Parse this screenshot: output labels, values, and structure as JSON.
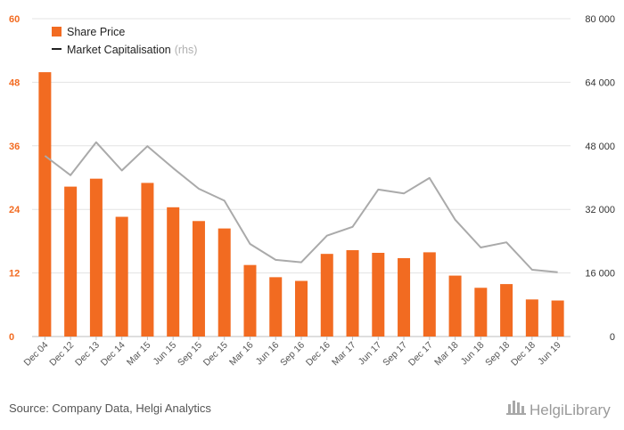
{
  "chart_data": {
    "type": "bar",
    "categories": [
      "Dec 04",
      "Dec 12",
      "Dec 13",
      "Dec 14",
      "Mar 15",
      "Jun 15",
      "Sep 15",
      "Dec 15",
      "Mar 16",
      "Jun 16",
      "Sep 16",
      "Dec 16",
      "Mar 17",
      "Jun 17",
      "Sep 17",
      "Dec 17",
      "Mar 18",
      "Jun 18",
      "Sep 18",
      "Dec 18",
      "Jun 19"
    ],
    "series": [
      {
        "name": "Share Price",
        "type": "bar",
        "axis": "left",
        "color": "#f26b21",
        "values": [
          49.9,
          28.3,
          29.8,
          22.6,
          29.0,
          24.4,
          21.8,
          20.4,
          13.5,
          11.2,
          10.5,
          15.6,
          16.3,
          15.8,
          14.8,
          15.9,
          11.5,
          9.2,
          9.9,
          7.0,
          6.8
        ]
      },
      {
        "name": "Market Capitalisation",
        "name_suffix": "(rhs)",
        "type": "line",
        "axis": "right",
        "color": "#aaaaaa",
        "values": [
          45500,
          40600,
          48900,
          41800,
          47900,
          42400,
          37200,
          34200,
          23300,
          19300,
          18700,
          25400,
          27600,
          37000,
          36000,
          39900,
          29400,
          22400,
          23700,
          16800,
          16200
        ]
      }
    ],
    "ylim_left": [
      0,
      60
    ],
    "yticks_left": [
      "0",
      "12",
      "24",
      "36",
      "48",
      "60"
    ],
    "ylim_right": [
      0,
      80000
    ],
    "yticks_right": [
      "0",
      "16 000",
      "32 000",
      "48 000",
      "64 000",
      "80 000"
    ],
    "grid": true,
    "legend_position": "top-left",
    "colors": {
      "bar": "#f26b21",
      "line": "#aaaaaa",
      "left_axis_text": "#f26b21",
      "grid": "#e3e3e3"
    }
  },
  "legend": {
    "share_price": "Share Price",
    "market_cap": "Market Capitalisation",
    "market_cap_suffix": "(rhs)"
  },
  "footer": {
    "source": "Source: Company Data, Helgi Analytics",
    "logo": "HelgiLibrary",
    "logo_icon": "helgi-building-icon"
  }
}
